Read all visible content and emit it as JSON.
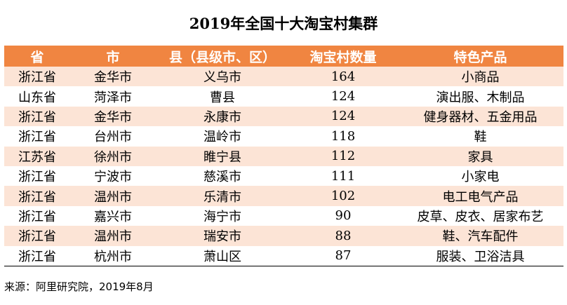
{
  "title": "2019年全国十大淘宝村集群",
  "headers": [
    "省",
    "市",
    "县（县级市、区）",
    "淘宝村数量",
    "特色产品"
  ],
  "rows": [
    [
      "浙江省",
      "金华市",
      "义乌市",
      "164",
      "小商品"
    ],
    [
      "山东省",
      "菏泽市",
      "曹县",
      "124",
      "演出服、木制品"
    ],
    [
      "浙江省",
      "金华市",
      "永康市",
      "124",
      "健身器材、五金用品"
    ],
    [
      "浙江省",
      "台州市",
      "温岭市",
      "118",
      "鞋"
    ],
    [
      "江苏省",
      "徐州市",
      "睢宁县",
      "112",
      "家具"
    ],
    [
      "浙江省",
      "宁波市",
      "慈溪市",
      "111",
      "小家电"
    ],
    [
      "浙江省",
      "温州市",
      "乐清市",
      "102",
      "电工电气产品"
    ],
    [
      "浙江省",
      "嘉兴市",
      "海宁市",
      "90",
      "皮草、皮衣、居家布艺"
    ],
    [
      "浙江省",
      "温州市",
      "瑞安市",
      "88",
      "鞋、汽车配件"
    ],
    [
      "浙江省",
      "杭州市",
      "萧山区",
      "87",
      "服装、卫浴洁具"
    ]
  ],
  "source_note": "来源：阿里研究院，2019年8月"
}
